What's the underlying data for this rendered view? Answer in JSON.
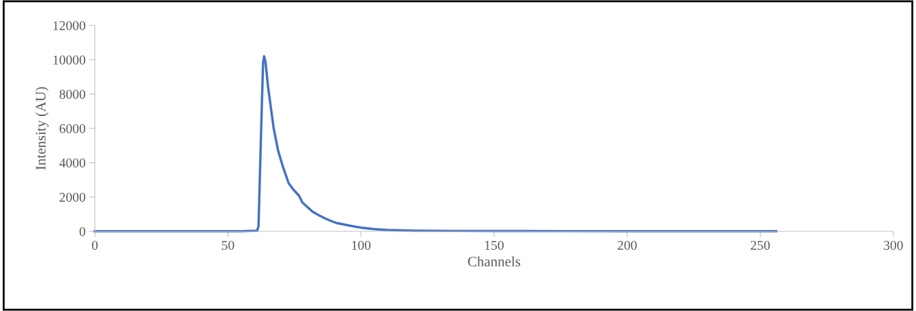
{
  "chart_data": {
    "type": "line",
    "xlabel": "Channels",
    "ylabel": "Intensity (AU)",
    "x": [
      0,
      20,
      40,
      55,
      61,
      61.5,
      62.5,
      63.2,
      63.6,
      64.1,
      65.1,
      67.2,
      68.9,
      70.7,
      72.8,
      74.5,
      76.7,
      78.0,
      80.0,
      81.8,
      84.0,
      86.6,
      88.5,
      90.9,
      93.0,
      95.2,
      98.0,
      100.4,
      105,
      110,
      120,
      135,
      150,
      175,
      200,
      225,
      256
    ],
    "values": [
      10,
      10,
      10,
      10,
      40,
      300,
      6000,
      9800,
      10200,
      9900,
      8400,
      6000,
      4680,
      3750,
      2810,
      2450,
      2080,
      1680,
      1400,
      1150,
      950,
      750,
      620,
      480,
      420,
      350,
      270,
      210,
      130,
      80,
      40,
      25,
      20,
      15,
      12,
      10,
      10
    ],
    "color": "#4472c4",
    "xlim": [
      0,
      300
    ],
    "xticks": [
      0,
      50,
      100,
      150,
      200,
      250,
      300
    ],
    "ylim": [
      0,
      12000
    ],
    "yticks": [
      0,
      2000,
      4000,
      6000,
      8000,
      10000,
      12000
    ],
    "grid": false,
    "marker": "none",
    "line_style": "solid"
  }
}
